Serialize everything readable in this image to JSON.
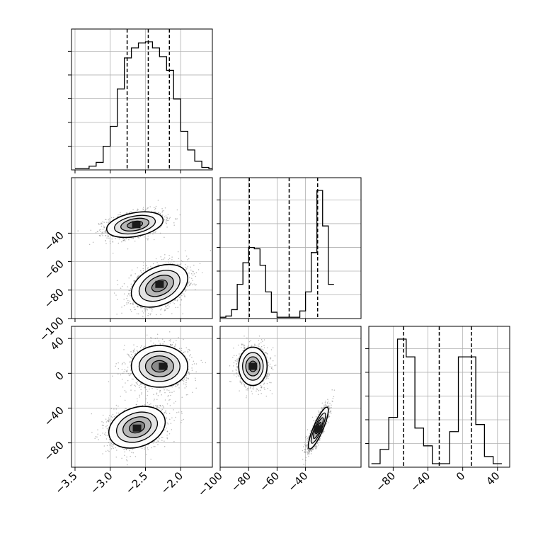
{
  "chart_data": {
    "type": "corner",
    "grid": true,
    "colors": {
      "ink": "#000000",
      "grid": "#b0b0b0",
      "scatter": "#7f7f7f",
      "background": "#ffffff"
    },
    "params": [
      {
        "range": [
          -3.55,
          -1.55
        ],
        "ticks": [
          -3.5,
          -3.0,
          -2.5,
          -2.0,
          -1.5
        ],
        "tick_labels": [
          "−3.5",
          "−3.0",
          "−2.5",
          "−2.0",
          "−1.5"
        ]
      },
      {
        "range": [
          -100,
          -1
        ],
        "ticks": [
          -100,
          -80,
          -60,
          -40
        ],
        "tick_labels": [
          "−100",
          "−80",
          "−60",
          "−40"
        ]
      },
      {
        "range": [
          -108,
          54
        ],
        "ticks": [
          -80,
          -40,
          0,
          40
        ],
        "tick_labels": [
          "−80",
          "−40",
          "0",
          "40"
        ]
      }
    ],
    "histograms": [
      {
        "param": 0,
        "bin_edges": [
          -3.5,
          -3.4,
          -3.3,
          -3.2,
          -3.1,
          -3.0,
          -2.9,
          -2.8,
          -2.7,
          -2.6,
          -2.5,
          -2.4,
          -2.3,
          -2.2,
          -2.1,
          -2.0,
          -1.9,
          -1.8,
          -1.7,
          -1.6,
          -1.5
        ],
        "counts": [
          1,
          1,
          3,
          6,
          19,
          35,
          65,
          90,
          98,
          102,
          103,
          98,
          91,
          80,
          57,
          31,
          16,
          7,
          2,
          1
        ],
        "quantiles": [
          -2.76,
          -2.46,
          -2.16
        ]
      },
      {
        "param": 1,
        "bin_edges": [
          -100,
          -96,
          -92,
          -88,
          -84,
          -80,
          -76,
          -72,
          -68,
          -64,
          -60,
          -56,
          -52,
          -48,
          -44,
          -40,
          -36,
          -32,
          -28,
          -24,
          -20
        ],
        "counts": [
          1,
          2,
          7,
          27,
          44,
          56,
          55,
          42,
          21,
          5,
          1,
          1,
          1,
          1,
          6,
          21,
          52,
          101,
          73,
          27
        ],
        "quantiles": [
          -79.5,
          -51.5,
          -31.5
        ]
      },
      {
        "param": 2,
        "bin_edges": [
          -105,
          -95,
          -85,
          -75,
          -65,
          -55,
          -45,
          -35,
          -25,
          -15,
          -5,
          5,
          15,
          25,
          35,
          45
        ],
        "counts": [
          1,
          5,
          14,
          36,
          31,
          11,
          6,
          1,
          1,
          10,
          31,
          31,
          12,
          3,
          1
        ],
        "quantiles": [
          -68,
          -27,
          10
        ]
      }
    ],
    "pairs": [
      {
        "x_param": 0,
        "y_param": 1,
        "clusters": [
          {
            "center": [
              -2.65,
              -34
            ],
            "sigma": [
              0.2,
              4.5
            ],
            "corr": 0.35,
            "weight": 0.5,
            "peak_cell": [
              -2.63,
              -34
            ]
          },
          {
            "center": [
              -2.3,
              -77
            ],
            "sigma": [
              0.2,
              7.5
            ],
            "corr": 0.35,
            "weight": 0.5,
            "peak_cell": [
              -2.3,
              -76
            ]
          }
        ]
      },
      {
        "x_param": 0,
        "y_param": 2,
        "clusters": [
          {
            "center": [
              -2.3,
              8
            ],
            "sigma": [
              0.2,
              12
            ],
            "corr": 0.0,
            "weight": 0.5,
            "peak_cell": [
              -2.25,
              8
            ]
          },
          {
            "center": [
              -2.62,
              -62
            ],
            "sigma": [
              0.2,
              12
            ],
            "corr": 0.25,
            "weight": 0.5,
            "peak_cell": [
              -2.62,
              -63
            ]
          }
        ]
      },
      {
        "x_param": 1,
        "y_param": 2,
        "clusters": [
          {
            "center": [
              -77,
              8
            ],
            "sigma": [
              5,
              11
            ],
            "corr": 0.0,
            "weight": 0.5,
            "peak_cell": [
              -77,
              8
            ]
          },
          {
            "center": [
              -31,
              -63
            ],
            "sigma": [
              3.5,
              12
            ],
            "corr": 0.85,
            "weight": 0.5,
            "peak_cell": [
              -31,
              -64
            ]
          }
        ]
      }
    ]
  }
}
